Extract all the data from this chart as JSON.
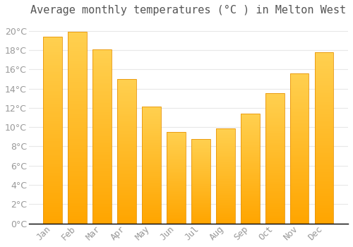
{
  "title": "Average monthly temperatures (°C ) in Melton West",
  "months": [
    "Jan",
    "Feb",
    "Mar",
    "Apr",
    "May",
    "Jun",
    "Jul",
    "Aug",
    "Sep",
    "Oct",
    "Nov",
    "Dec"
  ],
  "values": [
    19.4,
    19.9,
    18.1,
    15.0,
    12.1,
    9.5,
    8.8,
    9.9,
    11.4,
    13.5,
    15.6,
    17.8
  ],
  "bar_color_bottom": "#FFA500",
  "bar_color_top": "#FFD050",
  "bar_edge_color": "#E8950A",
  "background_color": "#FFFFFF",
  "grid_color": "#E8E8E8",
  "ylim": [
    0,
    21
  ],
  "ytick_step": 2,
  "title_fontsize": 11,
  "tick_fontsize": 9,
  "tick_color": "#999999",
  "title_color": "#555555",
  "bar_width": 0.75
}
